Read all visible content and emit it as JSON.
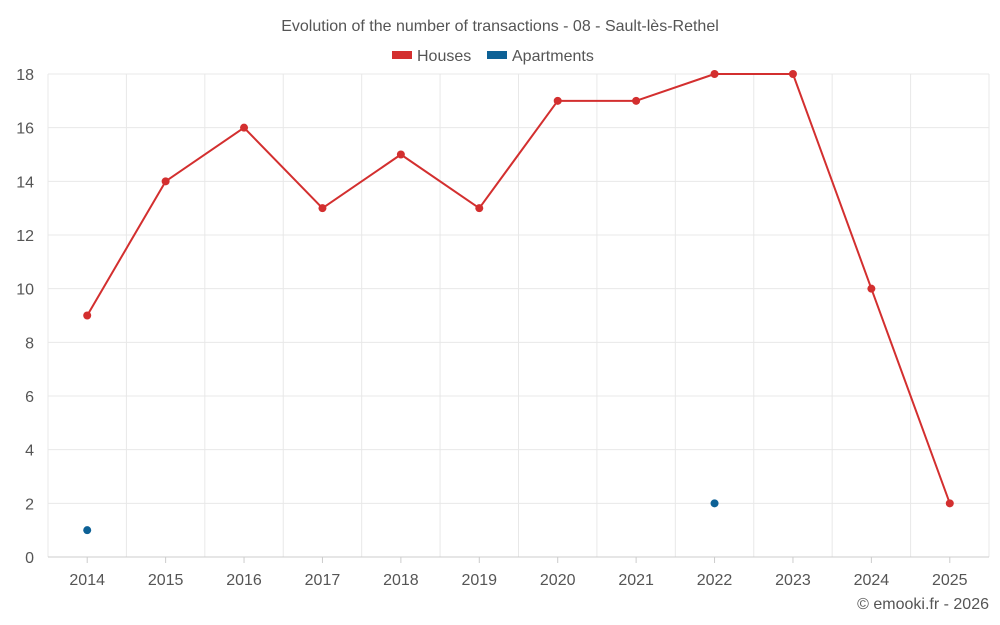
{
  "chart_data": {
    "type": "line",
    "title": "Evolution of the number of transactions - 08 - Sault-lès-Rethel",
    "categories": [
      "2014",
      "2015",
      "2016",
      "2017",
      "2018",
      "2019",
      "2020",
      "2021",
      "2022",
      "2023",
      "2024",
      "2025"
    ],
    "ylim": [
      0,
      18
    ],
    "yticks": [
      0,
      2,
      4,
      6,
      8,
      10,
      12,
      14,
      16,
      18
    ],
    "grid": true,
    "legend_position": "top",
    "series": [
      {
        "name": "Houses",
        "color": "#d32f2f",
        "show_line": true,
        "values": [
          9,
          14,
          16,
          13,
          15,
          13,
          17,
          17,
          18,
          18,
          10,
          2
        ]
      },
      {
        "name": "Apartments",
        "color": "#0d6196",
        "show_line": false,
        "values": [
          1,
          null,
          null,
          null,
          null,
          null,
          null,
          null,
          2,
          null,
          null,
          null
        ]
      }
    ]
  },
  "credit": "© emooki.fr - 2026"
}
